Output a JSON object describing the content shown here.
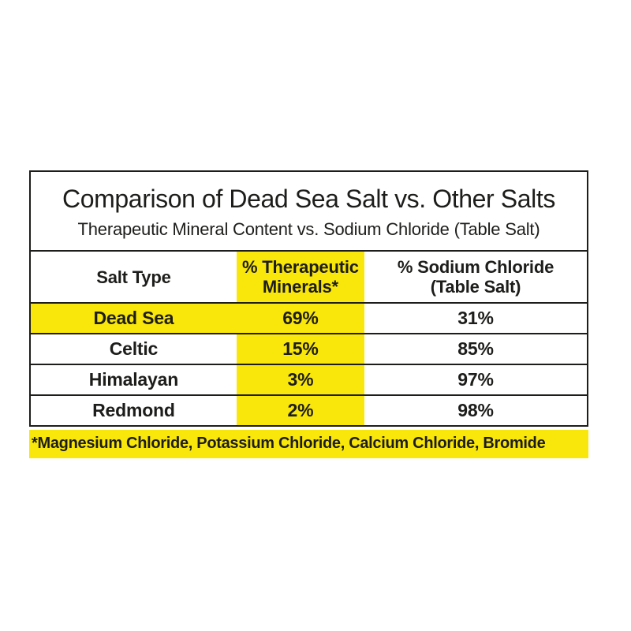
{
  "title": "Comparison of Dead Sea Salt vs. Other Salts",
  "subtitle": "Therapeutic Mineral Content vs. Sodium Chloride (Table Salt)",
  "table": {
    "headers": {
      "salt_type": "Salt Type",
      "therapeutic_line1": "% Therapeutic",
      "therapeutic_line2": "Minerals*",
      "sodium_line1": "% Sodium Chloride",
      "sodium_line2": "(Table Salt)"
    },
    "rows": [
      {
        "salt": "Dead Sea",
        "therapeutic": "69%",
        "sodium": "31%",
        "highlighted": true
      },
      {
        "salt": "Celtic",
        "therapeutic": "15%",
        "sodium": "85%",
        "highlighted": false
      },
      {
        "salt": "Himalayan",
        "therapeutic": "3%",
        "sodium": "97%",
        "highlighted": false
      },
      {
        "salt": "Redmond",
        "therapeutic": "2%",
        "sodium": "98%",
        "highlighted": false
      }
    ]
  },
  "footnote": "*Magnesium Chloride, Potassium Chloride, Calcium Chloride, Bromide",
  "colors": {
    "highlight_yellow": "#f9e60a",
    "text_black": "#1d1d1b",
    "border_black": "#1d1d1b",
    "background": "#ffffff"
  },
  "chart_data": {
    "type": "table",
    "title": "Comparison of Dead Sea Salt vs. Other Salts",
    "subtitle": "Therapeutic Mineral Content vs. Sodium Chloride (Table Salt)",
    "columns": [
      "Salt Type",
      "% Therapeutic Minerals*",
      "% Sodium Chloride (Table Salt)"
    ],
    "rows": [
      [
        "Dead Sea",
        69,
        31
      ],
      [
        "Celtic",
        15,
        85
      ],
      [
        "Himalayan",
        3,
        97
      ],
      [
        "Redmond",
        2,
        98
      ]
    ],
    "units": "percent",
    "highlighted_column": "% Therapeutic Minerals*",
    "highlighted_row": "Dead Sea",
    "footnote": "*Magnesium Chloride, Potassium Chloride, Calcium Chloride, Bromide"
  }
}
